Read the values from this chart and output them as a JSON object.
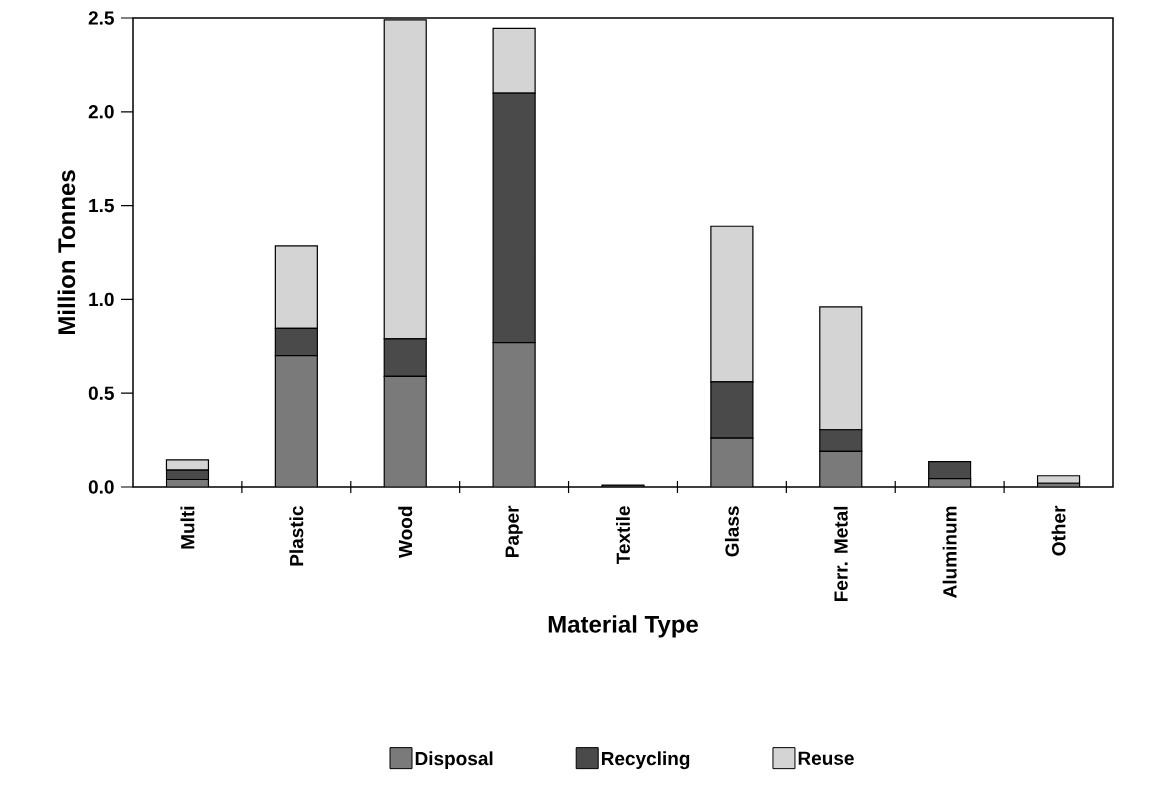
{
  "chart_data": {
    "type": "bar",
    "stacked": true,
    "xlabel": "Material Type",
    "ylabel": "Million Tonnes",
    "categories": [
      "Multi",
      "Plastic",
      "Wood",
      "Paper",
      "Textile",
      "Glass",
      "Ferr. Metal",
      "Aluminum",
      "Other"
    ],
    "series": [
      {
        "name": "Disposal",
        "color": "#7a7a7a",
        "values": [
          0.04,
          0.7,
          0.59,
          0.77,
          0,
          0.26,
          0.19,
          0.045,
          0.02
        ]
      },
      {
        "name": "Recycling",
        "color": "#4a4a4a",
        "values": [
          0.05,
          0.145,
          0.2,
          1.33,
          0.01,
          0.3,
          0.115,
          0.09,
          0
        ]
      },
      {
        "name": "Reuse",
        "color": "#d4d4d4",
        "values": [
          0.055,
          0.44,
          1.7,
          0.345,
          0,
          0.83,
          0.655,
          0,
          0.04
        ]
      }
    ],
    "ylim": [
      0,
      2.5
    ],
    "yticks": [
      {
        "value": 0,
        "label": "0.0"
      },
      {
        "value": 0.5,
        "label": "0.5"
      },
      {
        "value": 1,
        "label": "1.0"
      },
      {
        "value": 1.5,
        "label": "1.5"
      },
      {
        "value": 2,
        "label": "2.0"
      },
      {
        "value": 2.5,
        "label": "2.5"
      }
    ],
    "grid": false,
    "legend": "bottom"
  }
}
